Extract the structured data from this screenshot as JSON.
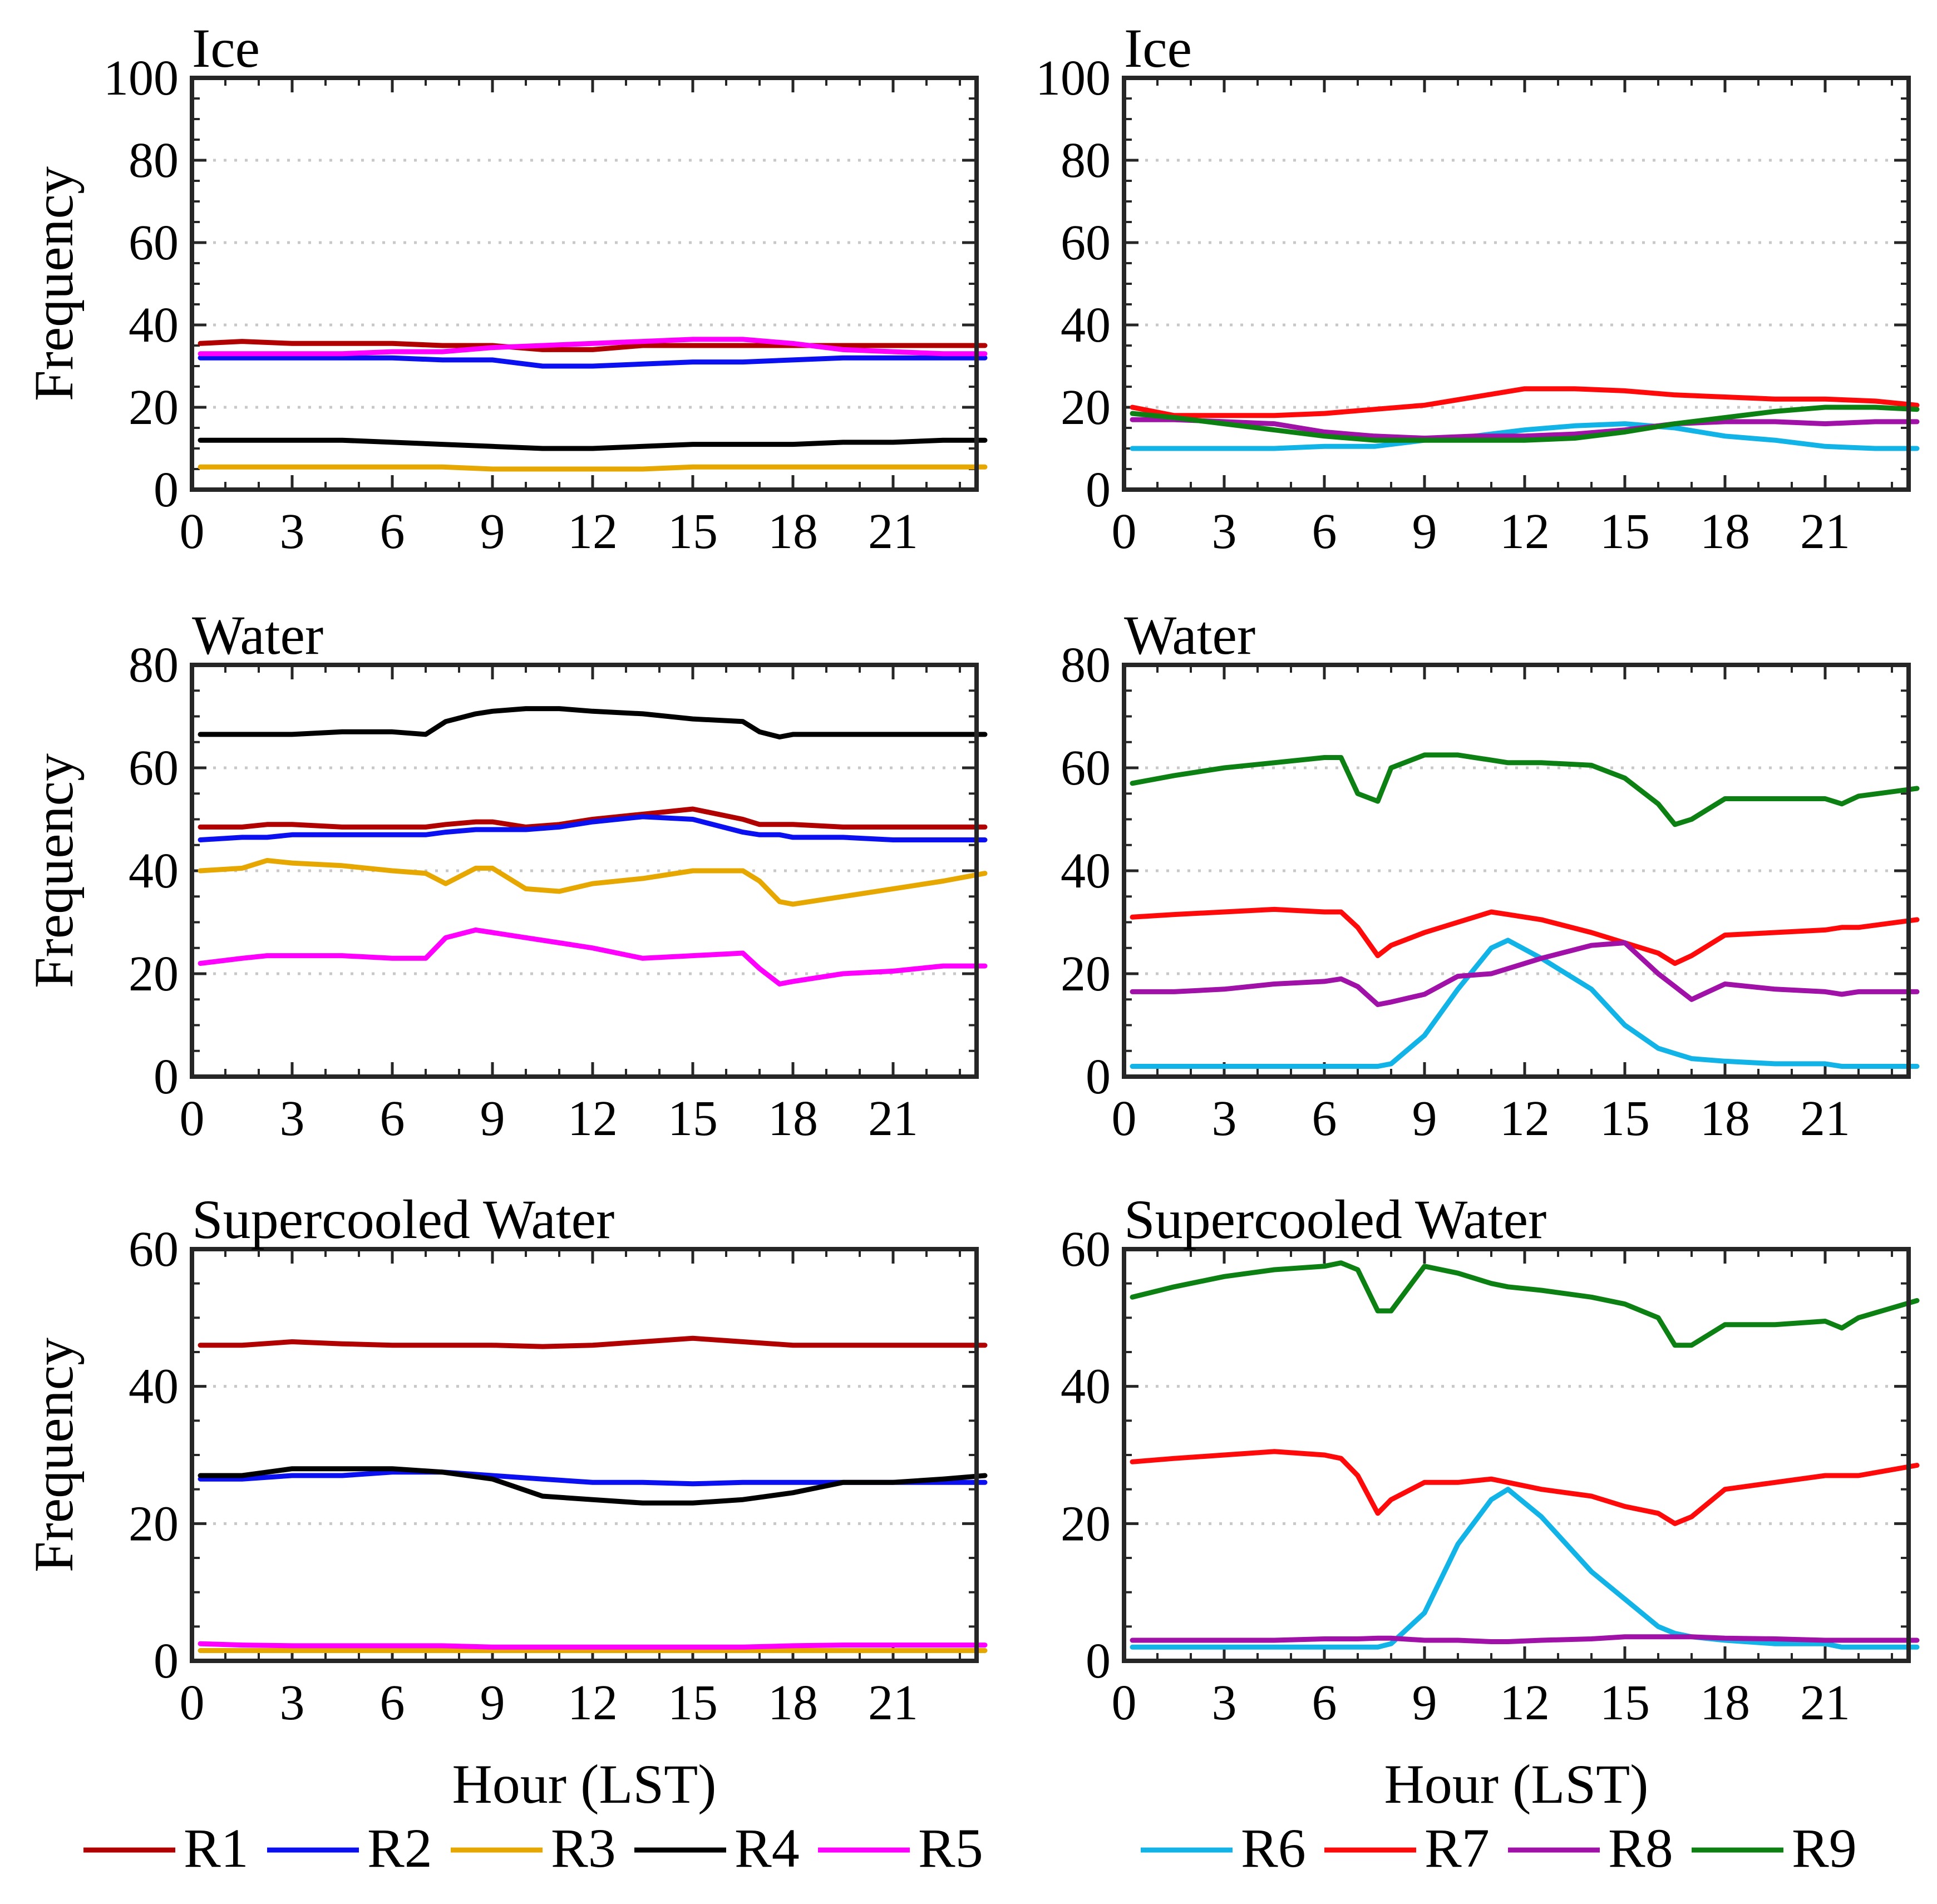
{
  "figure": {
    "x_label": "Hour (LST)",
    "y_label": "Frequency",
    "x_ticks": [
      "0",
      "3",
      "6",
      "9",
      "12",
      "15",
      "18",
      "21"
    ]
  },
  "legend_left": [
    {
      "name": "R1",
      "color": "#b00000"
    },
    {
      "name": "R2",
      "color": "#0a10f0"
    },
    {
      "name": "R3",
      "color": "#e6a700"
    },
    {
      "name": "R4",
      "color": "#000000"
    },
    {
      "name": "R5",
      "color": "#ff00ff"
    }
  ],
  "legend_right": [
    {
      "name": "R6",
      "color": "#12b3e6"
    },
    {
      "name": "R7",
      "color": "#ff0a0a"
    },
    {
      "name": "R8",
      "color": "#a011a8"
    },
    {
      "name": "R9",
      "color": "#0d8013"
    }
  ],
  "chart_data": [
    {
      "type": "line",
      "title": "Ice",
      "xlabel": "",
      "ylabel": "Frequency",
      "xlim": [
        0,
        23.5
      ],
      "ylim": [
        0,
        100
      ],
      "yticks": [
        "0",
        "20",
        "40",
        "60",
        "80",
        "100"
      ],
      "x": [
        0.25,
        1.5,
        3,
        4.5,
        6,
        7.5,
        9,
        10.5,
        12,
        13.5,
        15,
        16.5,
        18,
        19.5,
        21,
        22.5,
        23.75
      ],
      "series": [
        {
          "name": "R1",
          "color": "#b00000",
          "values": [
            35.5,
            36,
            35.5,
            35.5,
            35.5,
            35,
            35,
            34,
            34,
            35,
            35,
            35,
            35,
            35,
            35,
            35,
            35
          ]
        },
        {
          "name": "R2",
          "color": "#0a10f0",
          "values": [
            32,
            32,
            32,
            32,
            32,
            31.5,
            31.5,
            30,
            30,
            30.5,
            31,
            31,
            31.5,
            32,
            32,
            32,
            32
          ]
        },
        {
          "name": "R3",
          "color": "#e6a700",
          "values": [
            5.5,
            5.5,
            5.5,
            5.5,
            5.5,
            5.5,
            5,
            5,
            5,
            5,
            5.5,
            5.5,
            5.5,
            5.5,
            5.5,
            5.5,
            5.5
          ]
        },
        {
          "name": "R4",
          "color": "#000000",
          "values": [
            12,
            12,
            12,
            12,
            11.5,
            11,
            10.5,
            10,
            10,
            10.5,
            11,
            11,
            11,
            11.5,
            11.5,
            12,
            12
          ]
        },
        {
          "name": "R5",
          "color": "#ff00ff",
          "values": [
            33,
            33,
            33,
            33,
            33.5,
            33.5,
            34.5,
            35,
            35.5,
            36,
            36.5,
            36.5,
            35.5,
            34,
            33.5,
            33,
            33
          ]
        }
      ]
    },
    {
      "type": "line",
      "title": "Ice",
      "xlabel": "",
      "ylabel": "",
      "xlim": [
        0,
        23.5
      ],
      "ylim": [
        0,
        100
      ],
      "yticks": [
        "0",
        "20",
        "40",
        "60",
        "80",
        "100"
      ],
      "x": [
        0.25,
        1.5,
        3,
        4.5,
        6,
        7.5,
        9,
        10.5,
        12,
        13.5,
        15,
        16.5,
        18,
        19.5,
        21,
        22.5,
        23.75
      ],
      "series": [
        {
          "name": "R6",
          "color": "#12b3e6",
          "values": [
            10,
            10,
            10,
            10,
            10.5,
            10.5,
            12,
            13,
            14.5,
            15.5,
            16,
            15,
            13,
            12,
            10.5,
            10,
            10
          ]
        },
        {
          "name": "R7",
          "color": "#ff0a0a",
          "values": [
            20,
            18,
            18,
            18,
            18.5,
            19.5,
            20.5,
            22.5,
            24.5,
            24.5,
            24,
            23,
            22.5,
            22,
            22,
            21.5,
            20.5
          ]
        },
        {
          "name": "R8",
          "color": "#a011a8",
          "values": [
            17,
            17,
            16.5,
            16,
            14,
            13,
            12.5,
            13,
            13,
            13.5,
            14.5,
            16,
            16.5,
            16.5,
            16,
            16.5,
            16.5
          ]
        },
        {
          "name": "R9",
          "color": "#0d8013",
          "values": [
            18.5,
            17.5,
            16,
            14.5,
            13,
            12,
            12,
            12,
            12,
            12.5,
            14,
            16,
            17.5,
            19,
            20,
            20,
            19.5
          ]
        }
      ]
    },
    {
      "type": "line",
      "title": "Water",
      "xlabel": "",
      "ylabel": "Frequency",
      "xlim": [
        0,
        23.5
      ],
      "ylim": [
        0,
        80
      ],
      "yticks": [
        "0",
        "20",
        "40",
        "60",
        "80"
      ],
      "x": [
        0.25,
        1.5,
        2.25,
        3,
        4.5,
        6,
        7,
        7.6,
        8.5,
        9,
        10,
        11,
        12,
        13.5,
        15,
        16.5,
        17,
        17.6,
        18,
        19.5,
        21,
        22.5,
        23.75
      ],
      "series": [
        {
          "name": "R1",
          "color": "#b00000",
          "values": [
            48.5,
            48.5,
            49,
            49,
            48.5,
            48.5,
            48.5,
            49,
            49.5,
            49.5,
            48.5,
            49,
            50,
            51,
            52,
            50,
            49,
            49,
            49,
            48.5,
            48.5,
            48.5,
            48.5
          ]
        },
        {
          "name": "R2",
          "color": "#0a10f0",
          "values": [
            46,
            46.5,
            46.5,
            47,
            47,
            47,
            47,
            47.5,
            48,
            48,
            48,
            48.5,
            49.5,
            50.5,
            50,
            47.5,
            47,
            47,
            46.5,
            46.5,
            46,
            46,
            46
          ]
        },
        {
          "name": "R3",
          "color": "#e6a700",
          "values": [
            40,
            40.5,
            42,
            41.5,
            41,
            40,
            39.5,
            37.5,
            40.5,
            40.5,
            36.5,
            36,
            37.5,
            38.5,
            40,
            40,
            38,
            34,
            33.5,
            35,
            36.5,
            38,
            39.5
          ]
        },
        {
          "name": "R4",
          "color": "#000000",
          "values": [
            66.5,
            66.5,
            66.5,
            66.5,
            67,
            67,
            66.5,
            69,
            70.5,
            71,
            71.5,
            71.5,
            71,
            70.5,
            69.5,
            69,
            67,
            66,
            66.5,
            66.5,
            66.5,
            66.5,
            66.5
          ]
        },
        {
          "name": "R5",
          "color": "#ff00ff",
          "values": [
            22,
            23,
            23.5,
            23.5,
            23.5,
            23,
            23,
            27,
            28.5,
            28,
            27,
            26,
            25,
            23,
            23.5,
            24,
            21,
            18,
            18.5,
            20,
            20.5,
            21.5,
            21.5
          ]
        }
      ]
    },
    {
      "type": "line",
      "title": "Water",
      "xlabel": "",
      "ylabel": "",
      "xlim": [
        0,
        23.5
      ],
      "ylim": [
        0,
        80
      ],
      "yticks": [
        "0",
        "20",
        "40",
        "60",
        "80"
      ],
      "x": [
        0.25,
        1.5,
        3,
        4.5,
        6,
        6.5,
        7,
        7.6,
        8,
        9,
        10,
        11,
        11.5,
        12.5,
        14,
        15,
        16,
        16.5,
        17,
        18,
        19.5,
        21,
        21.5,
        22,
        23.75
      ],
      "series": [
        {
          "name": "R6",
          "color": "#12b3e6",
          "values": [
            2,
            2,
            2,
            2,
            2,
            2,
            2,
            2,
            2.5,
            8,
            17,
            25,
            26.5,
            23,
            17,
            10,
            5.5,
            4.5,
            3.5,
            3,
            2.5,
            2.5,
            2,
            2,
            2
          ]
        },
        {
          "name": "R7",
          "color": "#ff0a0a",
          "values": [
            31,
            31.5,
            32,
            32.5,
            32,
            32,
            29,
            23.5,
            25.5,
            28,
            30,
            32,
            31.5,
            30.5,
            28,
            26,
            24,
            22,
            23.5,
            27.5,
            28,
            28.5,
            29,
            29,
            30.5
          ]
        },
        {
          "name": "R8",
          "color": "#a011a8",
          "values": [
            16.5,
            16.5,
            17,
            18,
            18.5,
            19,
            17.5,
            14,
            14.5,
            16,
            19.5,
            20,
            21,
            23,
            25.5,
            26,
            20,
            17.5,
            15,
            18,
            17,
            16.5,
            16,
            16.5,
            16.5
          ]
        },
        {
          "name": "R9",
          "color": "#0d8013",
          "values": [
            57,
            58.5,
            60,
            61,
            62,
            62,
            55,
            53.5,
            60,
            62.5,
            62.5,
            61.5,
            61,
            61,
            60.5,
            58,
            53,
            49,
            50,
            54,
            54,
            54,
            53,
            54.5,
            56
          ]
        }
      ]
    },
    {
      "type": "line",
      "title": "Supercooled Water",
      "xlabel": "Hour (LST)",
      "ylabel": "Frequency",
      "xlim": [
        0,
        23.5
      ],
      "ylim": [
        0,
        60
      ],
      "yticks": [
        "0",
        "20",
        "40",
        "60"
      ],
      "x": [
        0.25,
        1.5,
        3,
        4.5,
        6,
        7.5,
        9,
        10.5,
        12,
        13.5,
        15,
        16.5,
        18,
        19.5,
        21,
        22.5,
        23.75
      ],
      "series": [
        {
          "name": "R1",
          "color": "#b00000",
          "values": [
            46,
            46,
            46.5,
            46.2,
            46,
            46,
            46,
            45.8,
            46,
            46.5,
            47,
            46.5,
            46,
            46,
            46,
            46,
            46
          ]
        },
        {
          "name": "R2",
          "color": "#0a10f0",
          "values": [
            26.5,
            26.5,
            27,
            27,
            27.5,
            27.5,
            27,
            26.5,
            26,
            26,
            25.8,
            26,
            26,
            26,
            26,
            26,
            26
          ]
        },
        {
          "name": "R3",
          "color": "#e6a700",
          "values": [
            1.5,
            1.5,
            1.5,
            1.5,
            1.5,
            1.5,
            1.5,
            1.5,
            1.5,
            1.5,
            1.5,
            1.5,
            1.5,
            1.5,
            1.5,
            1.5,
            1.5
          ]
        },
        {
          "name": "R4",
          "color": "#000000",
          "values": [
            27,
            27,
            28,
            28,
            28,
            27.5,
            26.5,
            24,
            23.5,
            23,
            23,
            23.5,
            24.5,
            26,
            26,
            26.5,
            27
          ]
        },
        {
          "name": "R5",
          "color": "#ff00ff",
          "values": [
            2.5,
            2.3,
            2.2,
            2.2,
            2.2,
            2.2,
            2,
            2,
            2,
            2,
            2,
            2,
            2.2,
            2.3,
            2.3,
            2.3,
            2.3
          ]
        }
      ]
    },
    {
      "type": "line",
      "title": "Supercooled Water",
      "xlabel": "Hour (LST)",
      "ylabel": "",
      "xlim": [
        0,
        23.5
      ],
      "ylim": [
        0,
        60
      ],
      "yticks": [
        "0",
        "20",
        "40",
        "60"
      ],
      "x": [
        0.25,
        1.5,
        3,
        4.5,
        6,
        6.5,
        7,
        7.6,
        8,
        9,
        10,
        11,
        11.5,
        12.5,
        14,
        15,
        16,
        16.5,
        17,
        18,
        19.5,
        21,
        21.5,
        22,
        23.75
      ],
      "series": [
        {
          "name": "R6",
          "color": "#12b3e6",
          "values": [
            2,
            2,
            2,
            2,
            2,
            2,
            2,
            2,
            2.5,
            7,
            17,
            23.5,
            25,
            21,
            13,
            9,
            5,
            4,
            3.5,
            3,
            2.5,
            2.5,
            2,
            2,
            2
          ]
        },
        {
          "name": "R7",
          "color": "#ff0a0a",
          "values": [
            29,
            29.5,
            30,
            30.5,
            30,
            29.5,
            27,
            21.5,
            23.5,
            26,
            26,
            26.5,
            26,
            25,
            24,
            22.5,
            21.5,
            20,
            21,
            25,
            26,
            27,
            27,
            27,
            28.5
          ]
        },
        {
          "name": "R8",
          "color": "#a011a8",
          "values": [
            3,
            3,
            3,
            3,
            3.2,
            3.2,
            3.2,
            3.3,
            3.3,
            3,
            3,
            2.8,
            2.8,
            3,
            3.2,
            3.5,
            3.5,
            3.5,
            3.5,
            3.3,
            3.2,
            3,
            3,
            3,
            3
          ]
        },
        {
          "name": "R9",
          "color": "#0d8013",
          "values": [
            53,
            54.5,
            56,
            57,
            57.5,
            58,
            57,
            51,
            51,
            57.5,
            56.5,
            55,
            54.5,
            54,
            53,
            52,
            50,
            46,
            46,
            49,
            49,
            49.5,
            48.5,
            50,
            52.5
          ]
        }
      ]
    }
  ]
}
